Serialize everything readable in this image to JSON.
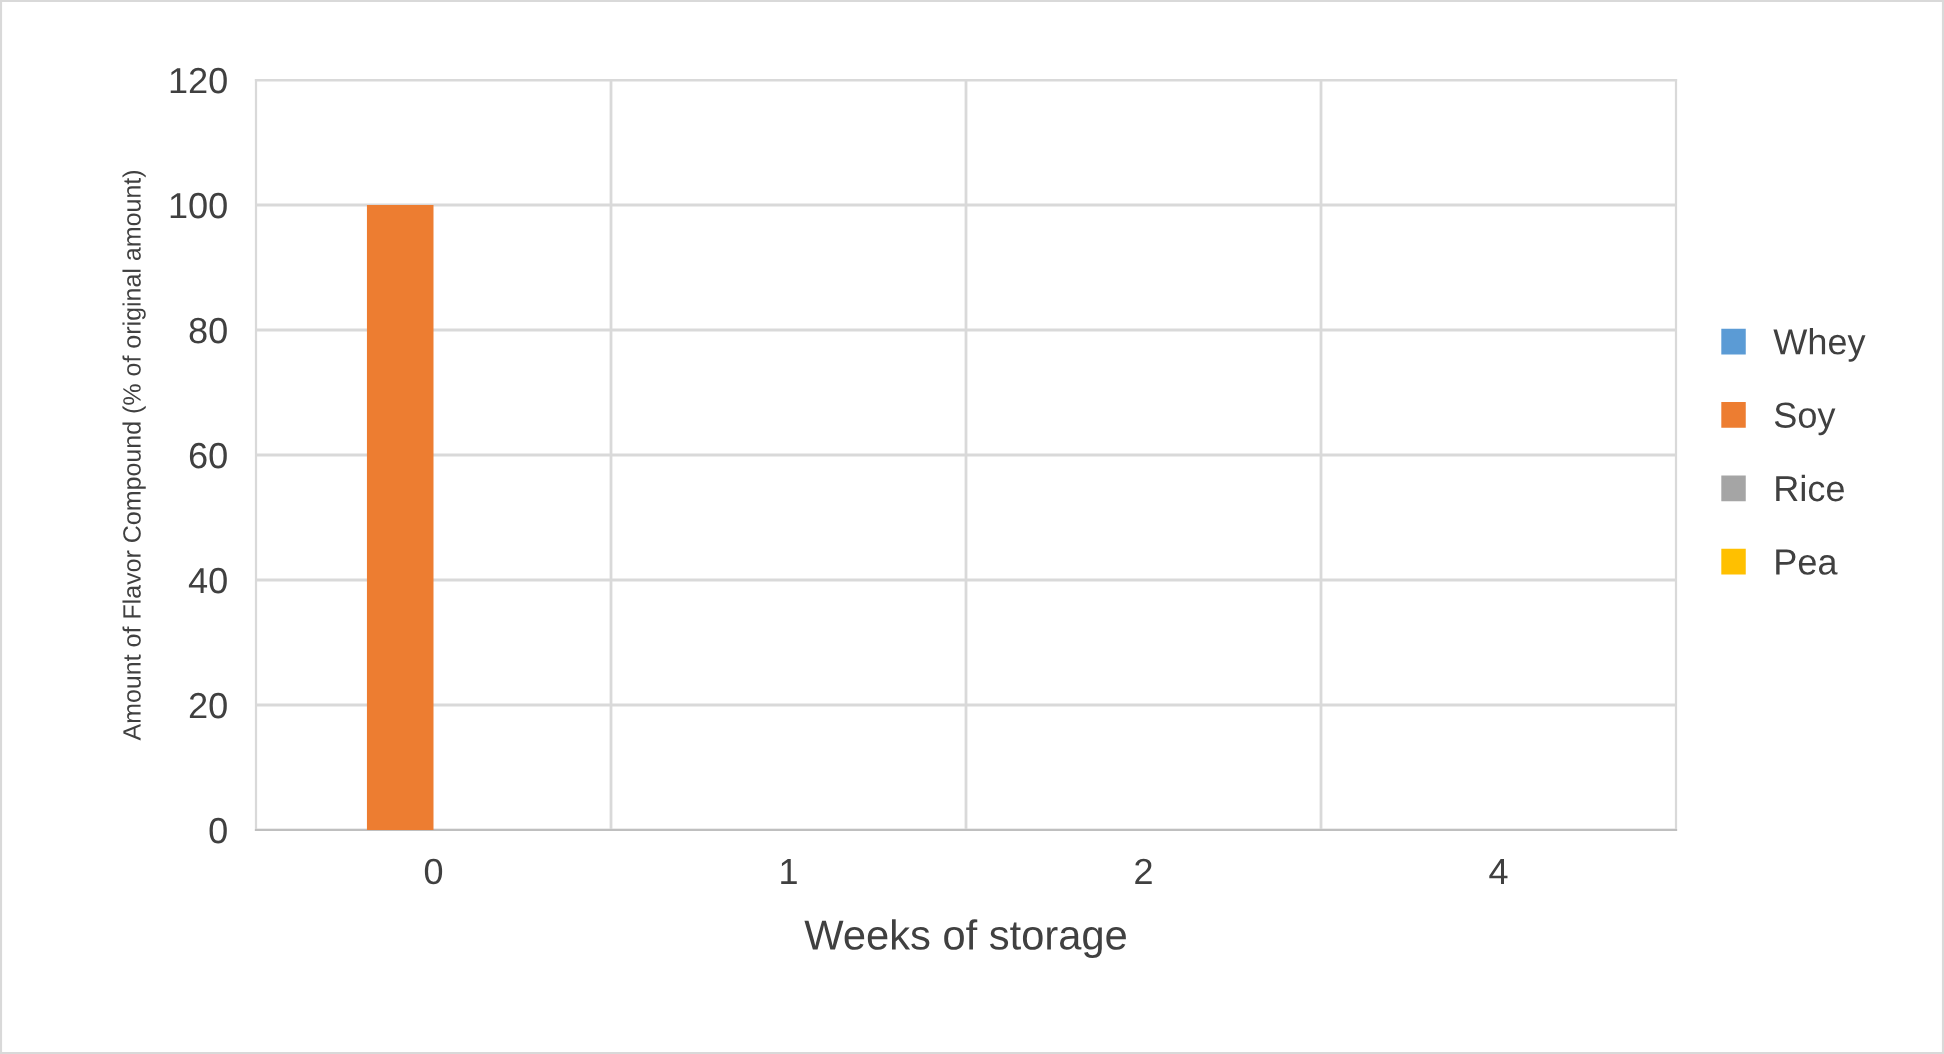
{
  "chart_data": {
    "type": "bar",
    "xlabel": "Weeks of storage",
    "ylabel": "Amount of Flavor Compound (% of original amount)",
    "categories": [
      "0",
      "1",
      "2",
      "4"
    ],
    "series": [
      {
        "name": "Whey",
        "color": "#5b9bd5",
        "values": [
          0,
          0,
          0,
          0
        ]
      },
      {
        "name": "Soy",
        "color": "#ed7d31",
        "values": [
          100,
          0,
          0,
          0
        ]
      },
      {
        "name": "Rice",
        "color": "#a5a5a5",
        "values": [
          0,
          0,
          0,
          0
        ]
      },
      {
        "name": "Pea",
        "color": "#ffc000",
        "values": [
          0,
          0,
          0,
          0
        ]
      }
    ],
    "ylim": [
      0,
      120
    ],
    "yticks": [
      0,
      20,
      40,
      60,
      80,
      100,
      120
    ],
    "grid": true,
    "legend": "right"
  }
}
